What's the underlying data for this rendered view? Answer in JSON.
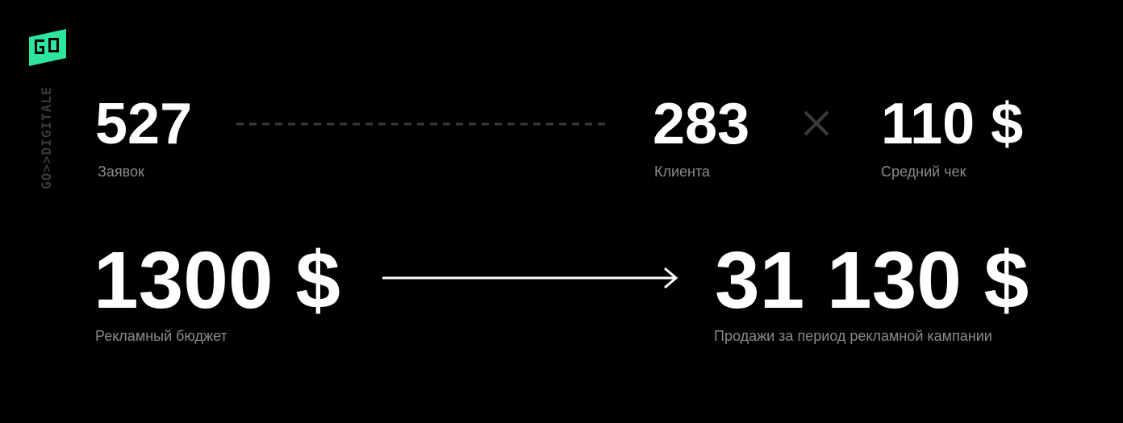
{
  "logo": {
    "icon_text": "GO",
    "vertical_text": "GO>>DIGITALE",
    "accent_color": "#2ee59d"
  },
  "funnel": {
    "leads": {
      "value": "527",
      "label": "Заявок"
    },
    "clients": {
      "value": "283",
      "label": "Клиента"
    },
    "average_check": {
      "value": "110 $",
      "label": "Средний чек"
    }
  },
  "result": {
    "budget": {
      "value": "1300 $",
      "label": "Рекламный бюджет"
    },
    "sales": {
      "value": "31 130 $",
      "label": "Продажи за период рекламной кампании"
    }
  },
  "icons": {
    "dashed_line": "dashed-connector",
    "multiply": "times-icon",
    "arrow": "arrow-right-icon"
  },
  "colors": {
    "background": "#000000",
    "value_text": "#ffffff",
    "label_text": "#8a8a8a",
    "muted": "#3a3a3a"
  }
}
